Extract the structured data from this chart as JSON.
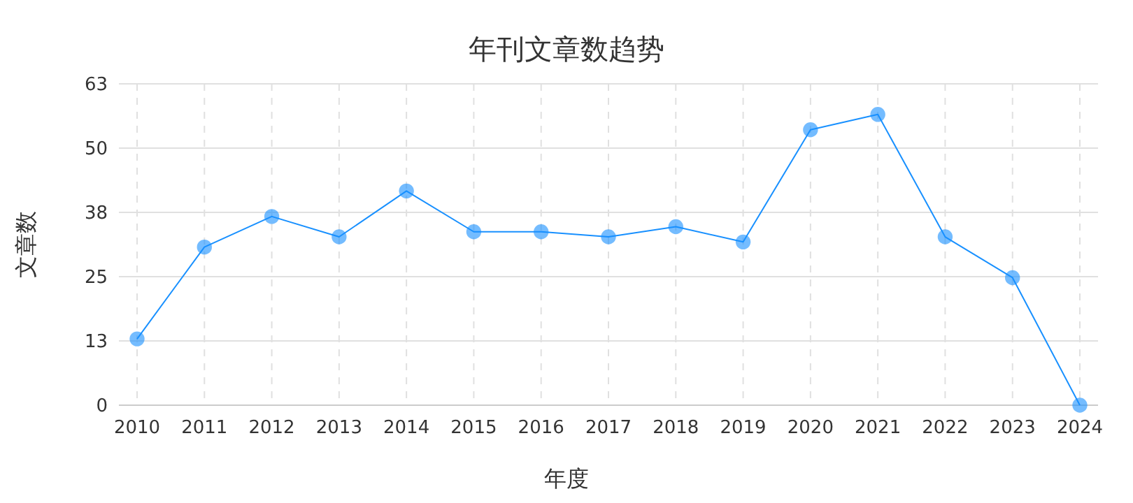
{
  "chart_data": {
    "type": "line",
    "title": "年刊文章数趋势",
    "xlabel": "年度",
    "ylabel": "文章数",
    "categories": [
      "2010",
      "2011",
      "2012",
      "2013",
      "2014",
      "2015",
      "2016",
      "2017",
      "2018",
      "2019",
      "2020",
      "2021",
      "2022",
      "2023",
      "2024"
    ],
    "series": [
      {
        "color": "#1890ff",
        "values": [
          13,
          31,
          37,
          33,
          42,
          34,
          34,
          33,
          35,
          32,
          54,
          57,
          33,
          25,
          0
        ]
      }
    ],
    "ylim": [
      0,
      63
    ],
    "yticks": [
      0,
      {
        "value": 12.6,
        "label": "13"
      },
      {
        "value": 25.2,
        "label": "25"
      },
      {
        "value": 37.8,
        "label": "38"
      },
      {
        "value": 50.4,
        "label": "50"
      },
      63
    ],
    "grid": true,
    "marker": "circle",
    "line_style": "solid"
  }
}
